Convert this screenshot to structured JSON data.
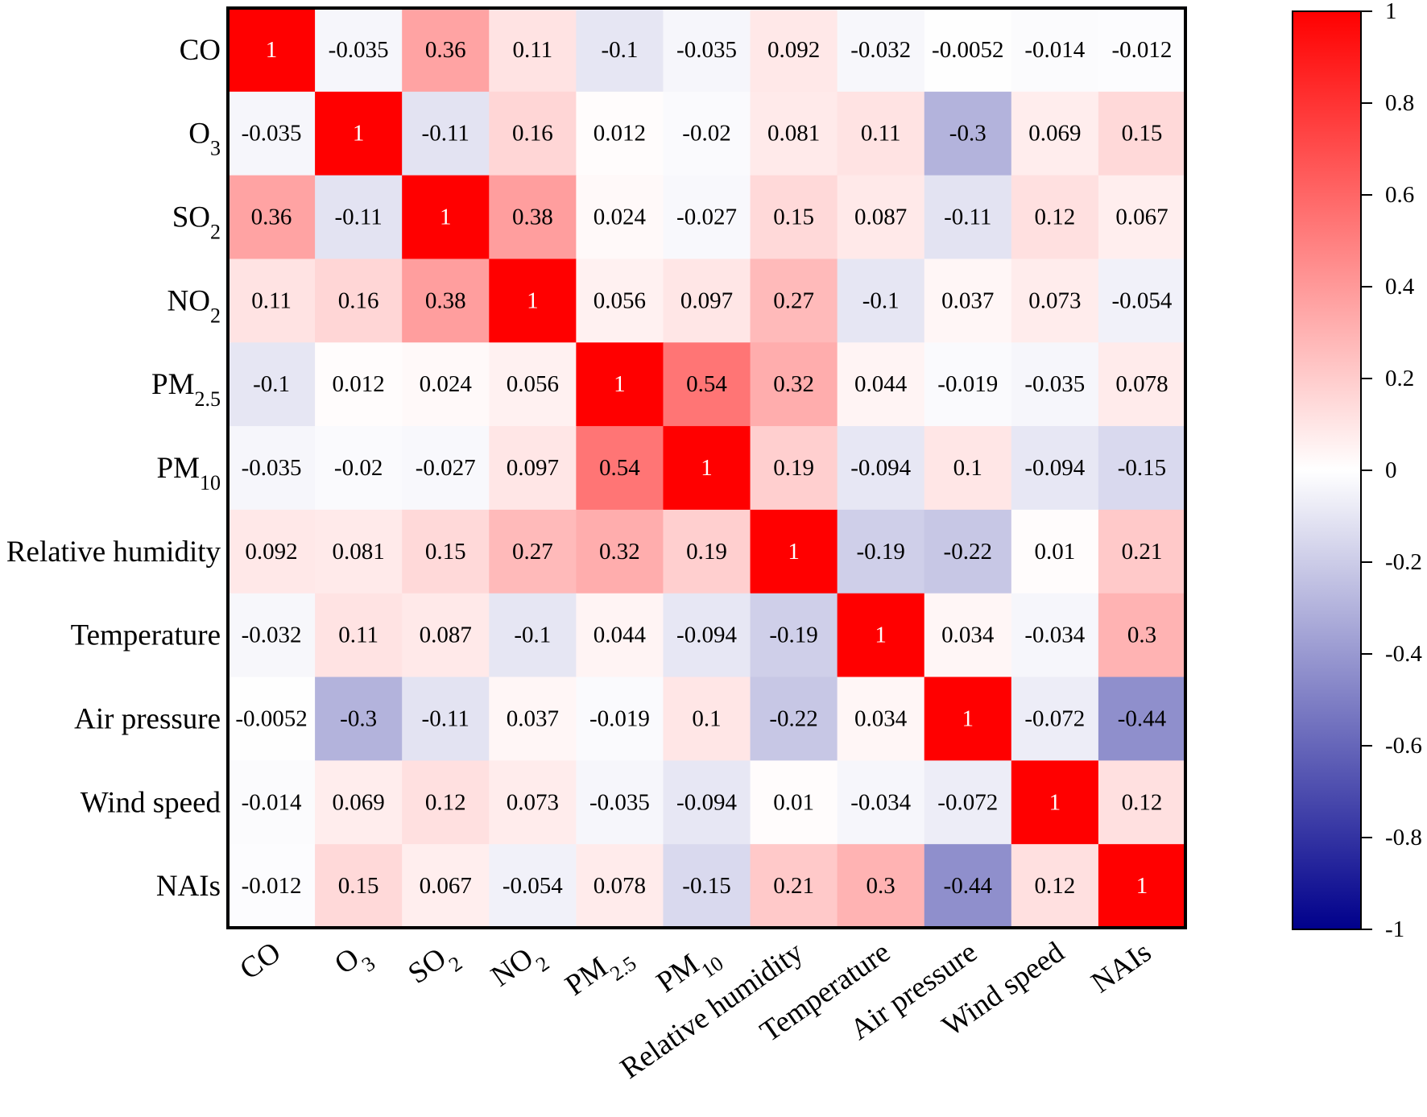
{
  "chart_data": {
    "type": "heatmap",
    "title": "",
    "variables": [
      {
        "base": "CO",
        "sub": ""
      },
      {
        "base": "O",
        "sub": "3"
      },
      {
        "base": "SO",
        "sub": "2"
      },
      {
        "base": "NO",
        "sub": "2"
      },
      {
        "base": "PM",
        "sub": "2.5"
      },
      {
        "base": "PM",
        "sub": "10"
      },
      {
        "base": "Relative humidity",
        "sub": ""
      },
      {
        "base": "Temperature",
        "sub": ""
      },
      {
        "base": "Air pressure",
        "sub": ""
      },
      {
        "base": "Wind speed",
        "sub": ""
      },
      {
        "base": "NAIs",
        "sub": ""
      }
    ],
    "matrix": [
      [
        "1",
        "-0.035",
        "0.36",
        "0.11",
        "-0.1",
        "-0.035",
        "0.092",
        "-0.032",
        "-0.0052",
        "-0.014",
        "-0.012"
      ],
      [
        "-0.035",
        "1",
        "-0.11",
        "0.16",
        "0.012",
        "-0.02",
        "0.081",
        "0.11",
        "-0.3",
        "0.069",
        "0.15"
      ],
      [
        "0.36",
        "-0.11",
        "1",
        "0.38",
        "0.024",
        "-0.027",
        "0.15",
        "0.087",
        "-0.11",
        "0.12",
        "0.067"
      ],
      [
        "0.11",
        "0.16",
        "0.38",
        "1",
        "0.056",
        "0.097",
        "0.27",
        "-0.1",
        "0.037",
        "0.073",
        "-0.054"
      ],
      [
        "-0.1",
        "0.012",
        "0.024",
        "0.056",
        "1",
        "0.54",
        "0.32",
        "0.044",
        "-0.019",
        "-0.035",
        "0.078"
      ],
      [
        "-0.035",
        "-0.02",
        "-0.027",
        "0.097",
        "0.54",
        "1",
        "0.19",
        "-0.094",
        "0.1",
        "-0.094",
        "-0.15"
      ],
      [
        "0.092",
        "0.081",
        "0.15",
        "0.27",
        "0.32",
        "0.19",
        "1",
        "-0.19",
        "-0.22",
        "0.01",
        "0.21"
      ],
      [
        "-0.032",
        "0.11",
        "0.087",
        "-0.1",
        "0.044",
        "-0.094",
        "-0.19",
        "1",
        "0.034",
        "-0.034",
        "0.3"
      ],
      [
        "-0.0052",
        "-0.3",
        "-0.11",
        "0.037",
        "-0.019",
        "0.1",
        "-0.22",
        "0.034",
        "1",
        "-0.072",
        "-0.44"
      ],
      [
        "-0.014",
        "0.069",
        "0.12",
        "0.073",
        "-0.035",
        "-0.094",
        "0.01",
        "-0.034",
        "-0.072",
        "1",
        "0.12"
      ],
      [
        "-0.012",
        "0.15",
        "0.067",
        "-0.054",
        "0.078",
        "-0.15",
        "0.21",
        "0.3",
        "-0.44",
        "0.12",
        "1"
      ]
    ],
    "colorbar": {
      "range": [
        -1,
        1
      ],
      "ticks": [
        "1",
        "0.8",
        "0.6",
        "0.4",
        "0.2",
        "0",
        "-0.2",
        "-0.4",
        "-0.6",
        "-0.8",
        "-1"
      ],
      "colors": {
        "positive": "#ff0000",
        "zero": "#ffffff",
        "negative": "#00008b"
      }
    }
  }
}
